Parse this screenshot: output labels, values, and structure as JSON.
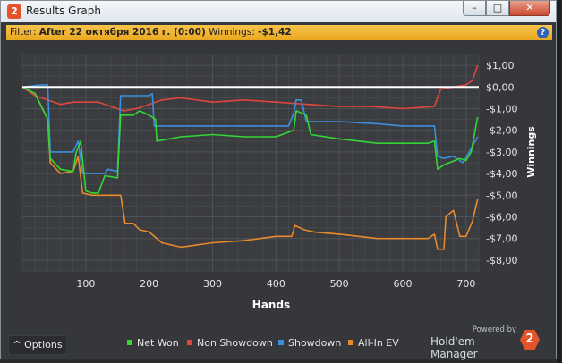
{
  "window": {
    "title": "Results Graph",
    "logo_text": "2",
    "min_label": "–",
    "max_label": "□",
    "close_label": "✕"
  },
  "filter": {
    "prefix": "Filter:",
    "text": "After 22 октября 2016 г. (0:00)",
    "winnings_label": "Winnings:",
    "winnings_value": "-$1,42",
    "help_label": "?"
  },
  "colors": {
    "net_won": "#33d633",
    "non_showdown": "#e0463c",
    "showdown": "#3b8fde",
    "all_in_ev": "#e88a2c",
    "zero_line": "#ffffff"
  },
  "chart_data": {
    "type": "line",
    "xlabel": "Hands",
    "ylabel": "Winnings",
    "xlim": [
      0,
      720
    ],
    "ylim": [
      -8.5,
      1.5
    ],
    "xticks": [
      100,
      200,
      300,
      400,
      500,
      600,
      700
    ],
    "yticks": [
      1,
      0,
      -1,
      -2,
      -3,
      -4,
      -5,
      -6,
      -7,
      -8
    ],
    "ytick_labels": [
      "$1,00",
      "$0,00",
      "-$1,00",
      "-$2,00",
      "-$3,00",
      "-$4,00",
      "-$5,00",
      "-$6,00",
      "-$7,00",
      "-$8,00"
    ],
    "grid": true,
    "legend_position": "bottom",
    "series": [
      {
        "name": "Net Won",
        "color": "#33d633",
        "points": [
          [
            0,
            0
          ],
          [
            20,
            -0.3
          ],
          [
            40,
            -1.5
          ],
          [
            44,
            -3.3
          ],
          [
            60,
            -3.8
          ],
          [
            80,
            -3.9
          ],
          [
            85,
            -3.0
          ],
          [
            92,
            -2.5
          ],
          [
            100,
            -4.8
          ],
          [
            110,
            -4.9
          ],
          [
            120,
            -4.9
          ],
          [
            130,
            -4.1
          ],
          [
            150,
            -4.2
          ],
          [
            155,
            -1.3
          ],
          [
            175,
            -1.3
          ],
          [
            185,
            -1.1
          ],
          [
            200,
            -1.3
          ],
          [
            210,
            -1.5
          ],
          [
            212,
            -2.5
          ],
          [
            250,
            -2.3
          ],
          [
            300,
            -2.2
          ],
          [
            350,
            -2.3
          ],
          [
            400,
            -2.3
          ],
          [
            428,
            -2.0
          ],
          [
            432,
            -1.1
          ],
          [
            440,
            -1.2
          ],
          [
            448,
            -1.3
          ],
          [
            455,
            -2.2
          ],
          [
            500,
            -2.4
          ],
          [
            560,
            -2.6
          ],
          [
            600,
            -2.6
          ],
          [
            640,
            -2.6
          ],
          [
            650,
            -2.5
          ],
          [
            655,
            -3.8
          ],
          [
            665,
            -3.6
          ],
          [
            690,
            -3.3
          ],
          [
            700,
            -3.4
          ],
          [
            708,
            -3.0
          ],
          [
            718,
            -1.4
          ]
        ]
      },
      {
        "name": "Non Showdown",
        "color": "#e0463c",
        "points": [
          [
            0,
            0
          ],
          [
            20,
            -0.4
          ],
          [
            40,
            -0.6
          ],
          [
            60,
            -0.8
          ],
          [
            80,
            -0.7
          ],
          [
            100,
            -0.7
          ],
          [
            120,
            -0.7
          ],
          [
            140,
            -0.9
          ],
          [
            160,
            -1.1
          ],
          [
            180,
            -1.0
          ],
          [
            200,
            -0.8
          ],
          [
            220,
            -0.6
          ],
          [
            250,
            -0.5
          ],
          [
            300,
            -0.7
          ],
          [
            350,
            -0.6
          ],
          [
            400,
            -0.7
          ],
          [
            450,
            -0.8
          ],
          [
            500,
            -0.9
          ],
          [
            550,
            -0.9
          ],
          [
            600,
            -1.0
          ],
          [
            650,
            -0.9
          ],
          [
            660,
            -0.1
          ],
          [
            700,
            0.1
          ],
          [
            710,
            0.3
          ],
          [
            718,
            1.0
          ]
        ]
      },
      {
        "name": "Showdown",
        "color": "#3b8fde",
        "points": [
          [
            0,
            0
          ],
          [
            30,
            0.1
          ],
          [
            40,
            0.1
          ],
          [
            44,
            -3.0
          ],
          [
            80,
            -3.0
          ],
          [
            88,
            -2.5
          ],
          [
            95,
            -4.0
          ],
          [
            130,
            -4.0
          ],
          [
            135,
            -3.8
          ],
          [
            150,
            -3.9
          ],
          [
            155,
            -0.4
          ],
          [
            200,
            -0.4
          ],
          [
            205,
            -0.3
          ],
          [
            208,
            -1.8
          ],
          [
            300,
            -1.8
          ],
          [
            350,
            -1.8
          ],
          [
            420,
            -1.8
          ],
          [
            428,
            -1.2
          ],
          [
            432,
            -0.6
          ],
          [
            440,
            -0.6
          ],
          [
            448,
            -1.6
          ],
          [
            500,
            -1.6
          ],
          [
            560,
            -1.7
          ],
          [
            600,
            -1.8
          ],
          [
            650,
            -1.8
          ],
          [
            655,
            -3.2
          ],
          [
            665,
            -3.3
          ],
          [
            680,
            -3.2
          ],
          [
            695,
            -3.5
          ],
          [
            705,
            -3.0
          ],
          [
            718,
            -2.3
          ]
        ]
      },
      {
        "name": "All-In EV",
        "color": "#e88a2c",
        "points": [
          [
            0,
            0
          ],
          [
            20,
            -0.3
          ],
          [
            40,
            -1.5
          ],
          [
            44,
            -3.5
          ],
          [
            60,
            -4.0
          ],
          [
            80,
            -3.9
          ],
          [
            88,
            -3.2
          ],
          [
            95,
            -4.9
          ],
          [
            110,
            -5.0
          ],
          [
            130,
            -5.0
          ],
          [
            155,
            -5.0
          ],
          [
            162,
            -6.3
          ],
          [
            175,
            -6.3
          ],
          [
            185,
            -6.6
          ],
          [
            200,
            -6.7
          ],
          [
            220,
            -7.2
          ],
          [
            250,
            -7.4
          ],
          [
            300,
            -7.2
          ],
          [
            350,
            -7.1
          ],
          [
            400,
            -6.9
          ],
          [
            425,
            -6.9
          ],
          [
            430,
            -6.4
          ],
          [
            445,
            -6.6
          ],
          [
            460,
            -6.7
          ],
          [
            500,
            -6.8
          ],
          [
            560,
            -7.0
          ],
          [
            600,
            -7.0
          ],
          [
            640,
            -7.0
          ],
          [
            650,
            -6.8
          ],
          [
            655,
            -7.5
          ],
          [
            665,
            -7.5
          ],
          [
            668,
            -6.0
          ],
          [
            680,
            -5.7
          ],
          [
            690,
            -6.9
          ],
          [
            700,
            -6.9
          ],
          [
            710,
            -6.2
          ],
          [
            718,
            -5.2
          ]
        ]
      }
    ]
  },
  "options": {
    "label": "^ Options"
  },
  "legend": [
    {
      "name": "Net Won",
      "color": "#33d633"
    },
    {
      "name": "Non Showdown",
      "color": "#e0463c"
    },
    {
      "name": "Showdown",
      "color": "#3b8fde"
    },
    {
      "name": "All-In EV",
      "color": "#e88a2c"
    }
  ],
  "brand": {
    "powered_by": "Powered by",
    "name": "Hold'em Manager",
    "badge": "2"
  }
}
